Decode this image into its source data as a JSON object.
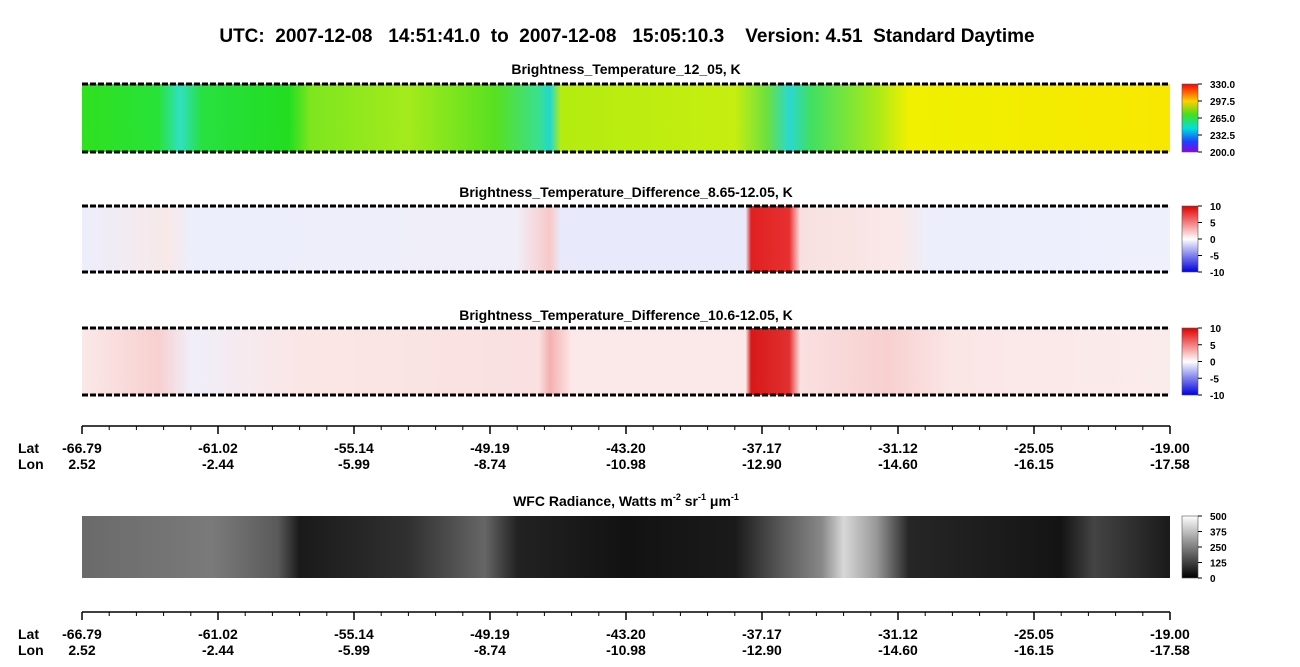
{
  "title": "UTC:  2007-12-08   14:51:41.0  to  2007-12-08   15:05:10.3    Version: 4.51  Standard Daytime",
  "panels": [
    {
      "title": [
        {
          "text": "Brightness_Temperature_12_05, K",
          "superscript": false
        }
      ],
      "colormap": "rainbow",
      "colorbar_ticks": [
        "330.0",
        "297.5",
        "265.0",
        "232.5",
        "200.0"
      ]
    },
    {
      "title": [
        {
          "text": "Brightness_Temperature_Difference_8.65-12.05, K",
          "superscript": false
        }
      ],
      "colormap": "diverging-btd86",
      "colorbar_ticks": [
        "10",
        "5",
        "0",
        "-5",
        "-10"
      ]
    },
    {
      "title": [
        {
          "text": "Brightness_Temperature_Difference_10.6-12.05, K",
          "superscript": false
        }
      ],
      "colormap": "diverging-btd106",
      "colorbar_ticks": [
        "10",
        "5",
        "0",
        "-5",
        "-10"
      ]
    },
    {
      "title": [
        {
          "text": "WFC Radiance, Watts m",
          "superscript": false
        },
        {
          "text": "-2",
          "superscript": true
        },
        {
          "text": " sr",
          "superscript": false
        },
        {
          "text": "-1",
          "superscript": true
        },
        {
          "text": " μm",
          "superscript": false
        },
        {
          "text": "-1",
          "superscript": true
        }
      ],
      "colormap": "gray",
      "colorbar_ticks": [
        "500",
        "375",
        "250",
        "125",
        "0"
      ]
    }
  ],
  "axes": [
    {
      "row_labels": [
        "Lat",
        "Lon"
      ],
      "lat": [
        "-66.79",
        "-61.02",
        "-55.14",
        "-49.19",
        "-43.20",
        "-37.17",
        "-31.12",
        "-25.05",
        "-19.00"
      ],
      "lon": [
        "2.52",
        "-2.44",
        "-5.99",
        "-8.74",
        "-10.98",
        "-12.90",
        "-14.60",
        "-16.15",
        "-17.58"
      ]
    },
    {
      "row_labels": [
        "Lat",
        "Lon"
      ],
      "lat": [
        "-66.79",
        "-61.02",
        "-55.14",
        "-49.19",
        "-43.20",
        "-37.17",
        "-31.12",
        "-25.05",
        "-19.00"
      ],
      "lon": [
        "2.52",
        "-2.44",
        "-5.99",
        "-8.74",
        "-10.98",
        "-12.90",
        "-14.60",
        "-16.15",
        "-17.58"
      ]
    }
  ]
}
